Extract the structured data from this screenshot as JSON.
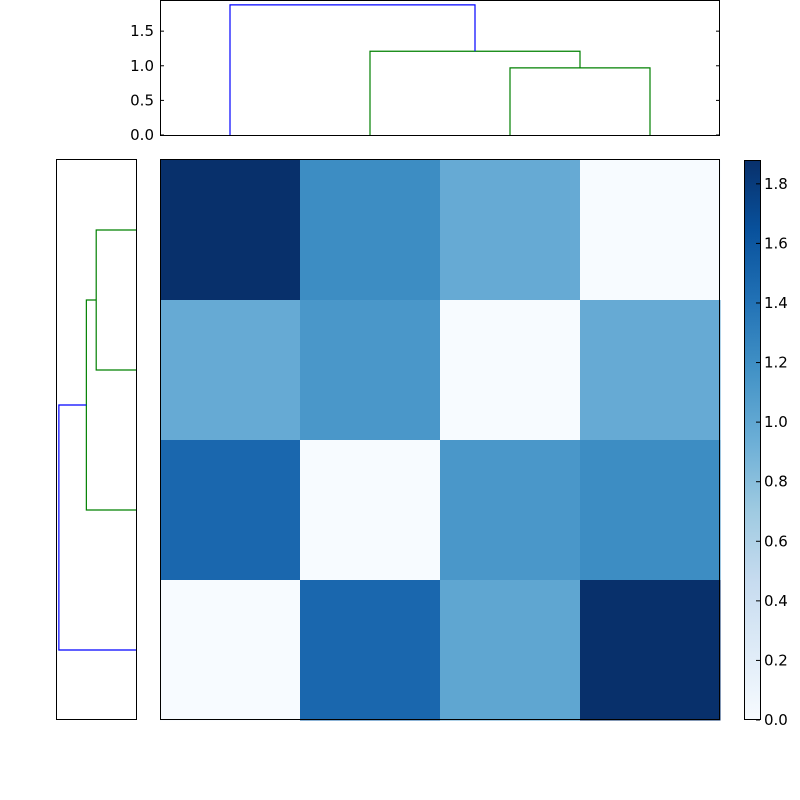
{
  "chart_data": [
    {
      "type": "dendrogram",
      "orientation": "top",
      "xlabel": "",
      "ylabel": "",
      "ylim": [
        0,
        1.95
      ],
      "yticks": [
        "0.0",
        "0.5",
        "1.0",
        "1.5"
      ],
      "ytick_values": [
        0.0,
        0.5,
        1.0,
        1.5
      ],
      "leaf_positions": [
        0,
        1,
        2,
        3
      ],
      "links": [
        {
          "left": 2,
          "right": 3,
          "height": 0.97,
          "color": "#008000"
        },
        {
          "left": 1,
          "right": "2-3",
          "height": 1.21,
          "color": "#008000"
        },
        {
          "left": 0,
          "right": "1-2-3",
          "height": 1.88,
          "color": "#0000ff"
        }
      ]
    },
    {
      "type": "dendrogram",
      "orientation": "left",
      "leaf_positions": [
        0,
        1,
        2,
        3
      ],
      "links": [
        {
          "left": 0,
          "right": 1,
          "height": 0.97,
          "color": "#008000"
        },
        {
          "left": "0-1",
          "right": 2,
          "height": 1.21,
          "color": "#008000"
        },
        {
          "left": "0-1-2",
          "right": 3,
          "height": 1.88,
          "color": "#0000ff"
        }
      ]
    },
    {
      "type": "heatmap",
      "colormap": "Blues",
      "rows": 4,
      "cols": 4,
      "values": [
        [
          1.88,
          1.21,
          0.97,
          0.0
        ],
        [
          0.97,
          1.13,
          0.0,
          0.97
        ],
        [
          1.48,
          0.0,
          1.13,
          1.21
        ],
        [
          0.0,
          1.48,
          1.01,
          1.88
        ]
      ]
    },
    {
      "type": "colorbar",
      "colormap": "Blues",
      "vlim": [
        0,
        1.88
      ],
      "ticks": [
        "0.0",
        "0.2",
        "0.4",
        "0.6",
        "0.8",
        "1.0",
        "1.2",
        "1.4",
        "1.6",
        "1.8"
      ],
      "tick_values": [
        0.0,
        0.2,
        0.4,
        0.6,
        0.8,
        1.0,
        1.2,
        1.4,
        1.6,
        1.8
      ]
    }
  ]
}
